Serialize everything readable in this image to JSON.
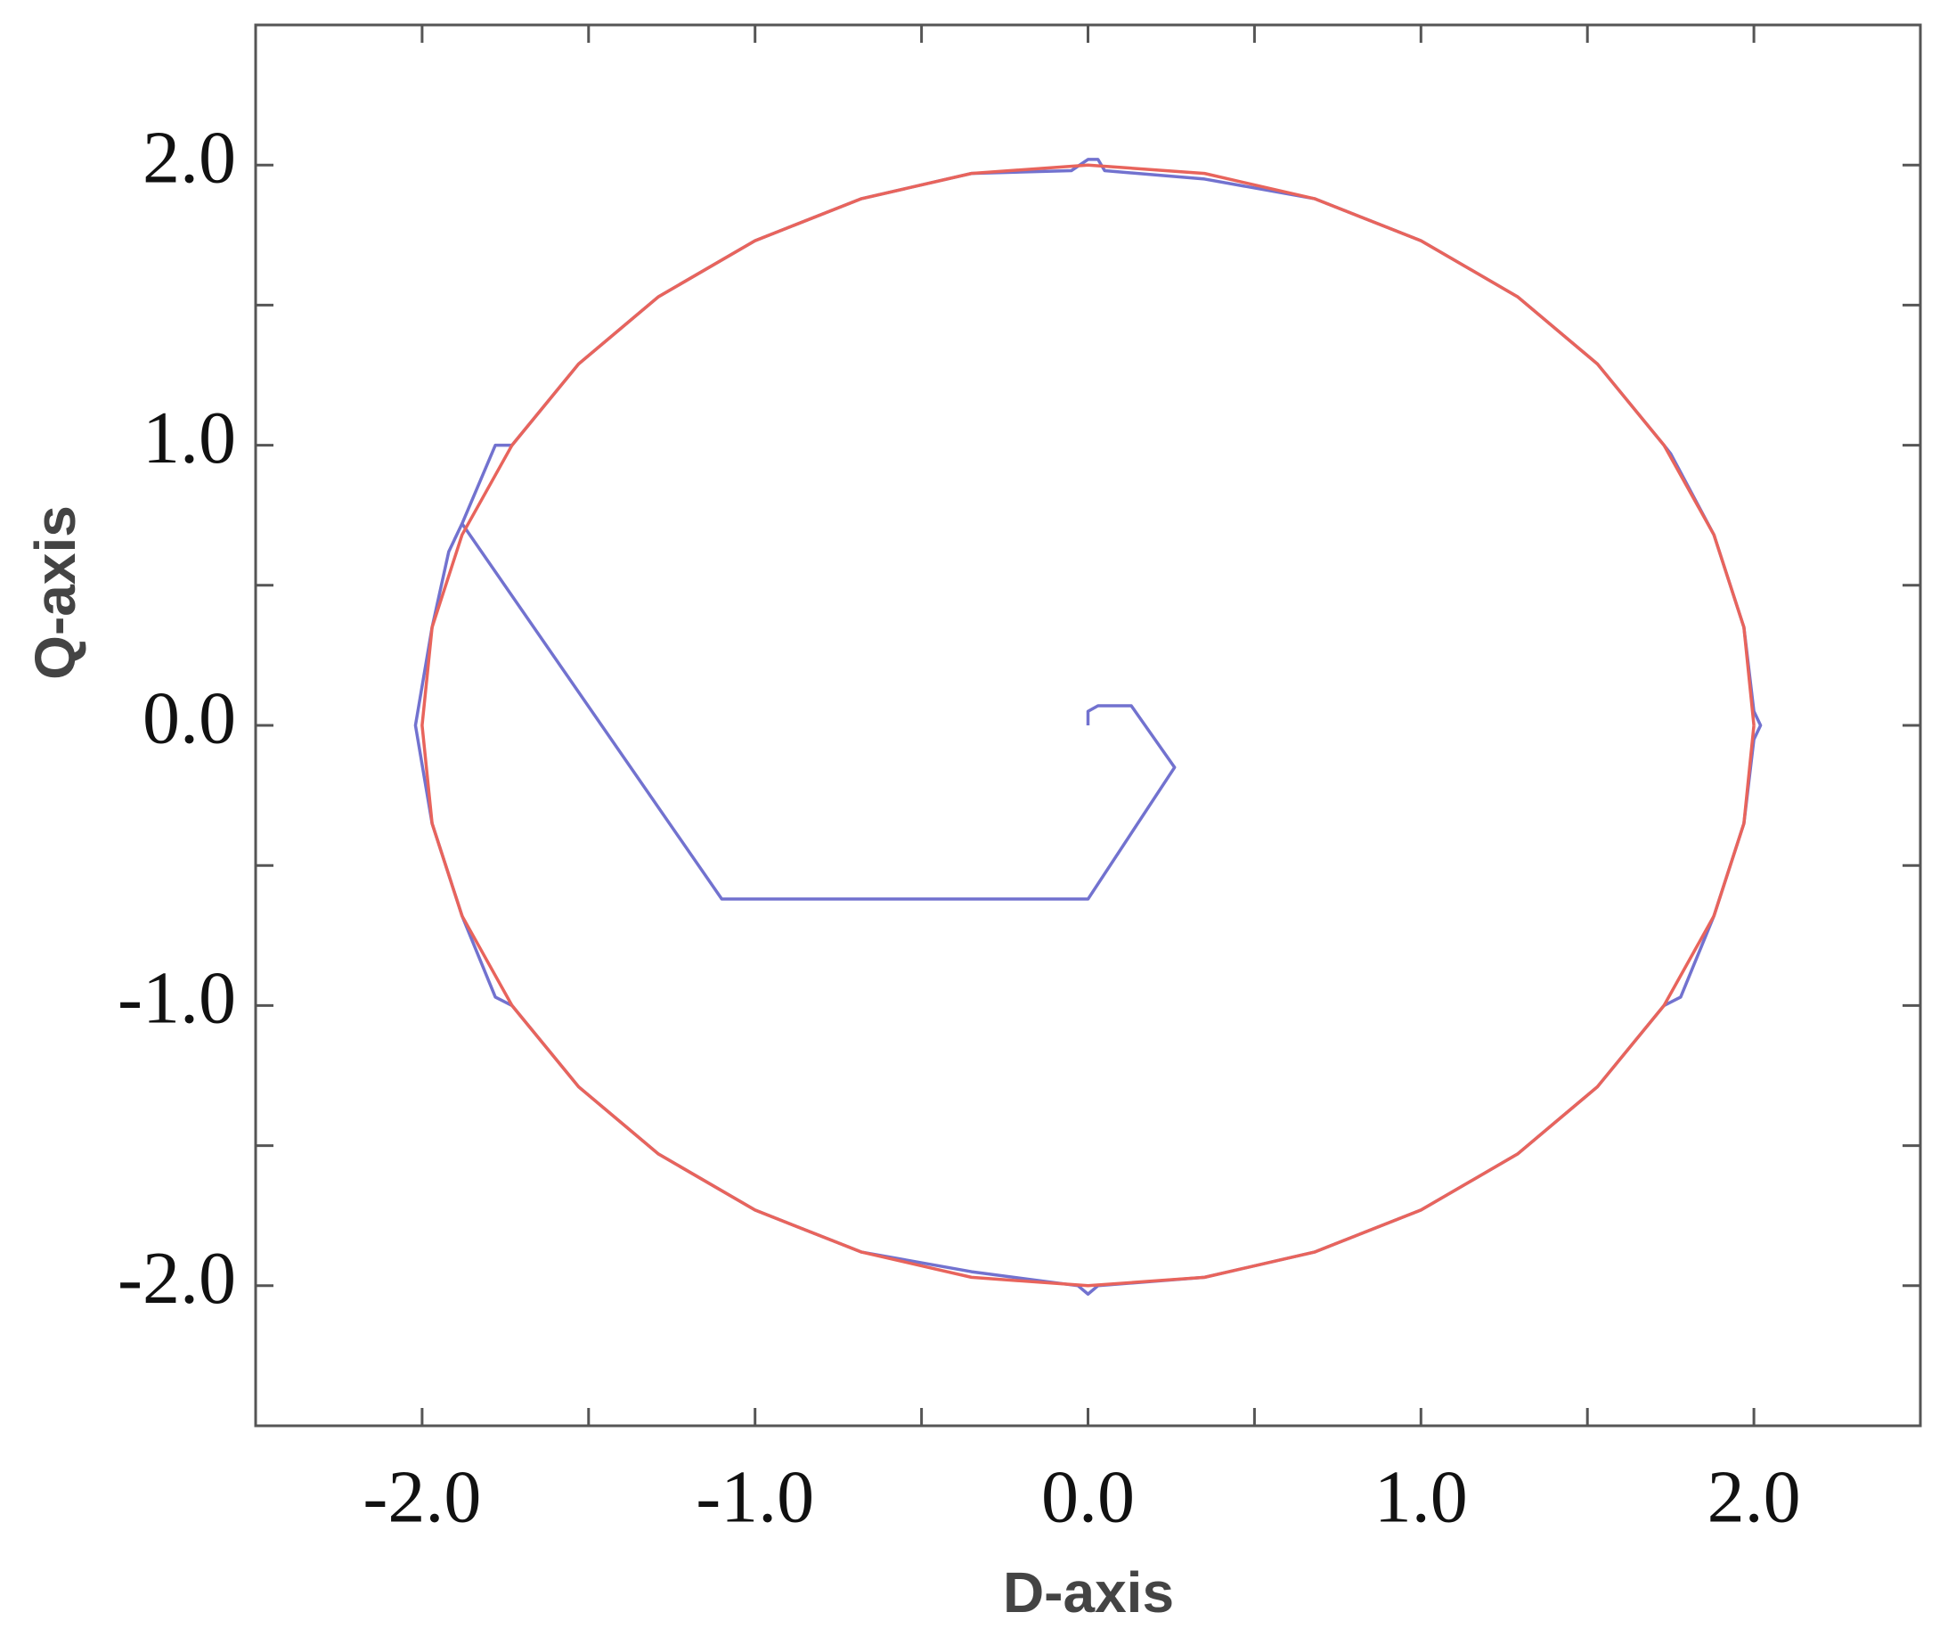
{
  "chart_data": {
    "type": "line",
    "xlabel": "D-axis",
    "ylabel": "Q-axis",
    "xlim": [
      -2.5,
      2.5
    ],
    "ylim": [
      -2.5,
      2.5
    ],
    "xticks": [
      {
        "value": -2,
        "label": "-2.0"
      },
      {
        "value": -1,
        "label": "-1.0"
      },
      {
        "value": 0,
        "label": "0.0"
      },
      {
        "value": 1,
        "label": "1.0"
      },
      {
        "value": 2,
        "label": "2.0"
      }
    ],
    "yticks": [
      {
        "value": -2,
        "label": "-2.0"
      },
      {
        "value": -1,
        "label": "-1.0"
      },
      {
        "value": 0,
        "label": "0.0"
      },
      {
        "value": 1,
        "label": "1.0"
      },
      {
        "value": 2,
        "label": "2.0"
      }
    ],
    "minor_ticks": [
      -1.5,
      -0.5,
      0.5,
      1.5
    ],
    "series": [
      {
        "color": "#7272cf",
        "x": [
          0,
          0,
          0.03,
          0.13,
          0.26,
          0,
          -1.1,
          -1.88,
          -1.78,
          -1.73,
          -1.53,
          -1.29,
          -1.0,
          -0.68,
          -0.35,
          -0.05,
          0,
          0.03,
          0.05,
          0.35,
          0.68,
          1.0,
          1.29,
          1.53,
          1.73,
          1.75,
          1.88,
          1.97,
          2.0,
          2.02,
          2.0,
          1.97,
          1.88,
          1.78,
          1.73,
          1.53,
          1.29,
          1.0,
          0.68,
          0.35,
          0.03,
          0,
          -0.03,
          -0.35,
          -0.68,
          -1.0,
          -1.29,
          -1.53,
          -1.73,
          -1.78,
          -1.88,
          -1.97,
          -2.02,
          -1.97,
          -1.92,
          -1.88
        ],
        "values": [
          0,
          0.05,
          0.07,
          0.07,
          -0.15,
          -0.62,
          -0.62,
          0.72,
          1.0,
          1.0,
          1.29,
          1.53,
          1.73,
          1.88,
          1.97,
          1.98,
          2.02,
          2.02,
          1.98,
          1.95,
          1.88,
          1.73,
          1.53,
          1.29,
          1.0,
          0.97,
          0.68,
          0.35,
          0.05,
          0,
          -0.05,
          -0.35,
          -0.68,
          -0.97,
          -1.0,
          -1.29,
          -1.53,
          -1.73,
          -1.88,
          -1.97,
          -2.0,
          -2.03,
          -2.0,
          -1.95,
          -1.88,
          -1.73,
          -1.53,
          -1.29,
          -1.0,
          -0.97,
          -0.68,
          -0.35,
          0,
          0.35,
          0.62,
          0.72
        ]
      },
      {
        "color": "#e8645c",
        "x": [
          2,
          1.97,
          1.88,
          1.73,
          1.53,
          1.29,
          1,
          0.68,
          0.35,
          0,
          -0.35,
          -0.68,
          -1,
          -1.29,
          -1.53,
          -1.73,
          -1.88,
          -1.97,
          -2,
          -1.97,
          -1.88,
          -1.73,
          -1.53,
          -1.29,
          -1,
          -0.68,
          -0.35,
          0,
          0.35,
          0.68,
          1,
          1.29,
          1.53,
          1.73,
          1.88,
          1.97,
          2
        ],
        "values": [
          0,
          0.35,
          0.68,
          1,
          1.29,
          1.53,
          1.73,
          1.88,
          1.97,
          2,
          1.97,
          1.88,
          1.73,
          1.53,
          1.29,
          1,
          0.68,
          0.35,
          0,
          -0.35,
          -0.68,
          -1,
          -1.29,
          -1.53,
          -1.73,
          -1.88,
          -1.97,
          -2,
          -1.97,
          -1.88,
          -1.73,
          -1.53,
          -1.29,
          -1,
          -0.68,
          -0.35,
          0
        ]
      }
    ]
  }
}
